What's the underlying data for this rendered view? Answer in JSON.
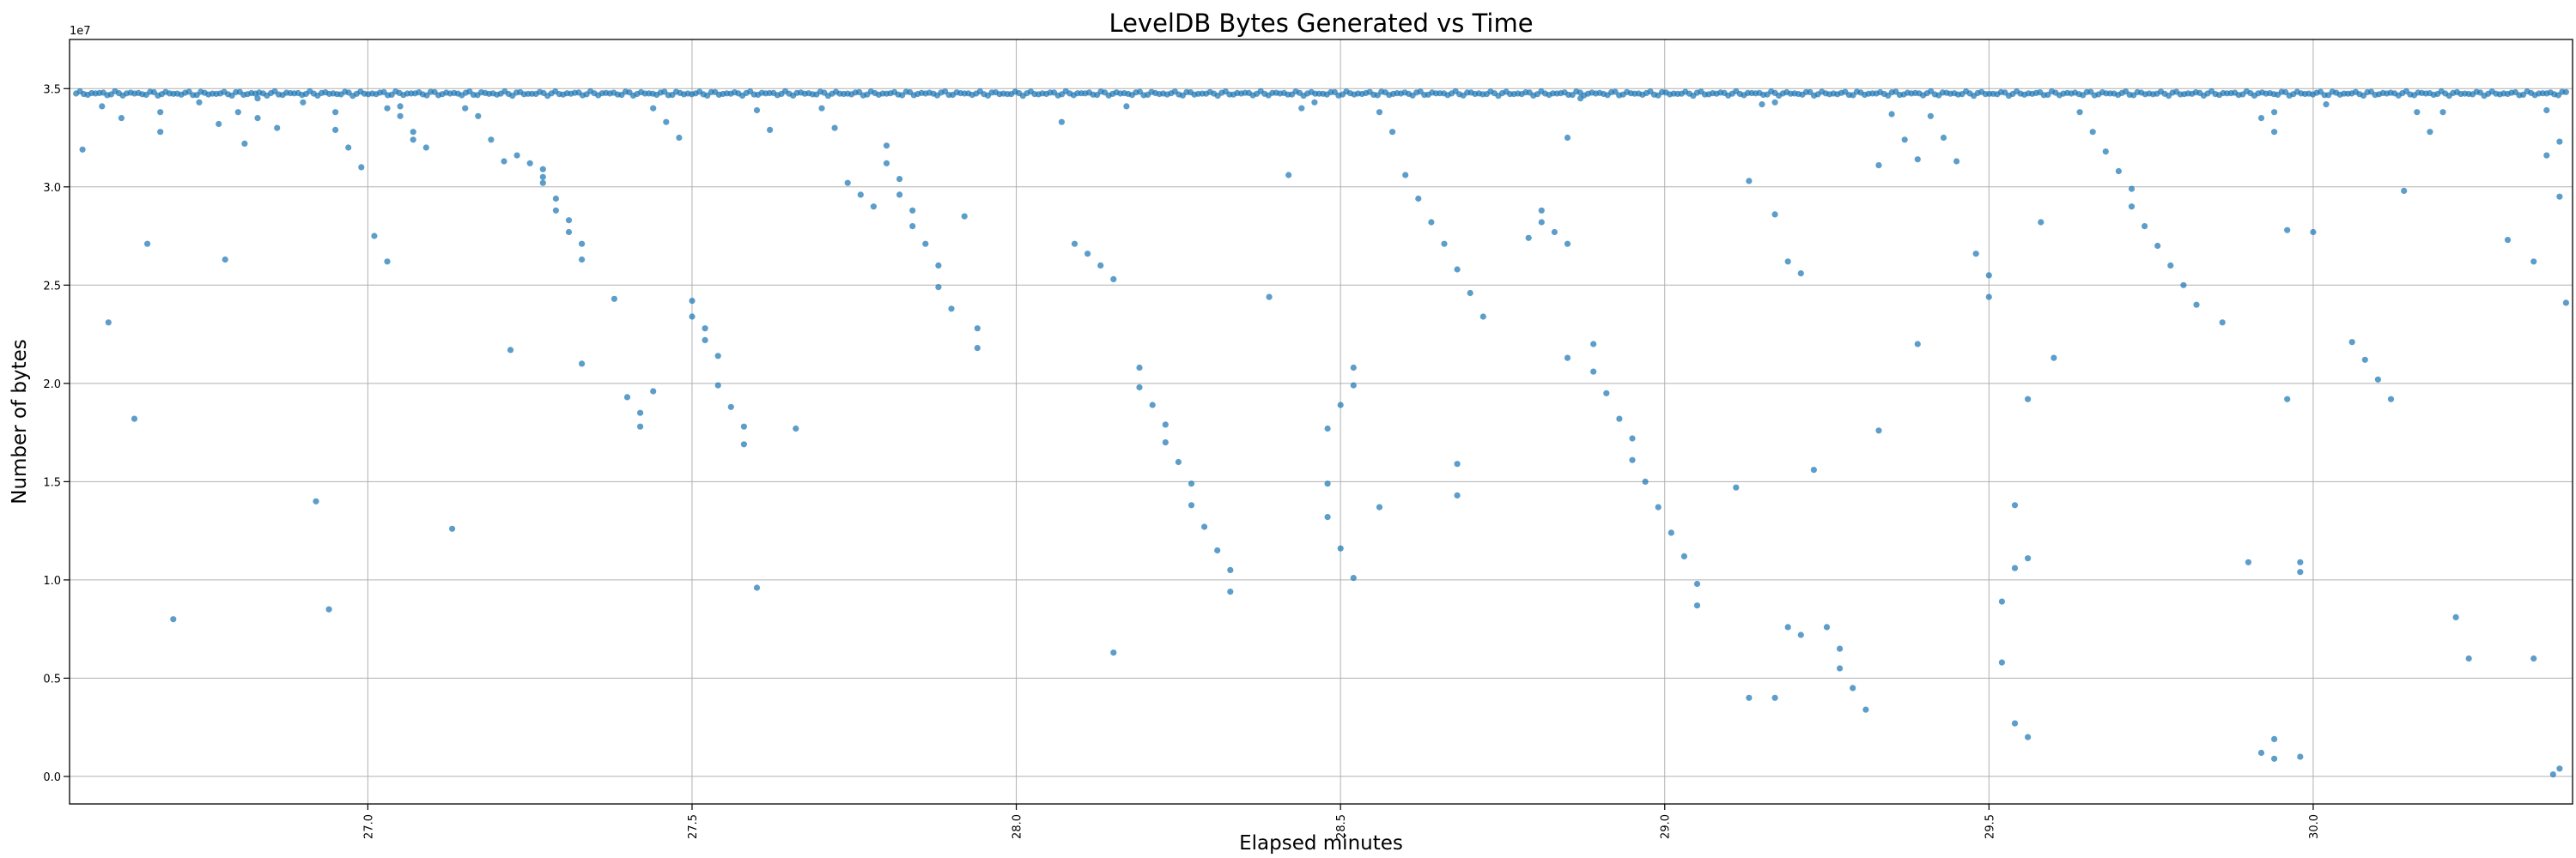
{
  "chart_data": {
    "type": "scatter",
    "title": "LevelDB Bytes Generated vs Time",
    "xlabel": "Elapsed minutes",
    "ylabel": "Number of bytes",
    "y_offset_label": "1e7",
    "xlim": [
      26.54,
      30.4
    ],
    "ylim": [
      -1.4,
      37.5
    ],
    "y_scale_note": "tick labels in units of 1e7 bytes",
    "grid": true,
    "x_ticks": [
      27.0,
      27.5,
      28.0,
      28.5,
      29.0,
      29.5,
      30.0
    ],
    "x_tick_labels": [
      "27.0",
      "27.5",
      "28.0",
      "28.5",
      "29.0",
      "29.5",
      "30.0"
    ],
    "y_ticks": [
      0,
      5,
      10,
      15,
      20,
      25,
      30,
      35
    ],
    "y_tick_labels": [
      "0.0",
      "0.5",
      "1.0",
      "1.5",
      "2.0",
      "2.5",
      "3.0",
      "3.5"
    ],
    "marker_color": "#1f77b4",
    "top_band": {
      "y": 34.75,
      "x_start": 26.55,
      "x_end": 30.39,
      "count": 640,
      "jitter": 0.12
    },
    "series": [
      {
        "points": [
          [
            26.56,
            31.9
          ],
          [
            26.59,
            34.1
          ],
          [
            26.6,
            23.1
          ],
          [
            26.62,
            33.5
          ],
          [
            26.64,
            18.2
          ],
          [
            26.66,
            27.1
          ],
          [
            26.68,
            32.8
          ],
          [
            26.68,
            33.8
          ],
          [
            26.7,
            8.0
          ],
          [
            26.74,
            34.3
          ],
          [
            26.77,
            33.2
          ],
          [
            26.78,
            26.3
          ],
          [
            26.8,
            33.8
          ],
          [
            26.81,
            32.2
          ],
          [
            26.83,
            33.5
          ],
          [
            26.83,
            34.5
          ],
          [
            26.86,
            33.0
          ],
          [
            26.9,
            34.3
          ],
          [
            26.92,
            14.0
          ],
          [
            26.94,
            8.5
          ],
          [
            26.95,
            32.9
          ],
          [
            26.95,
            33.8
          ],
          [
            26.97,
            32.0
          ],
          [
            26.99,
            31.0
          ],
          [
            27.01,
            27.5
          ],
          [
            27.03,
            26.2
          ],
          [
            27.03,
            34.0
          ],
          [
            27.05,
            33.6
          ],
          [
            27.05,
            34.1
          ],
          [
            27.07,
            32.8
          ],
          [
            27.07,
            32.4
          ],
          [
            27.09,
            32.0
          ],
          [
            27.13,
            12.6
          ],
          [
            27.15,
            34.0
          ],
          [
            27.17,
            33.6
          ],
          [
            27.19,
            32.4
          ],
          [
            27.21,
            31.3
          ],
          [
            27.22,
            21.7
          ],
          [
            27.23,
            31.6
          ],
          [
            27.25,
            31.2
          ],
          [
            27.27,
            30.9
          ],
          [
            27.27,
            30.5
          ],
          [
            27.27,
            30.2
          ],
          [
            27.29,
            29.4
          ],
          [
            27.29,
            28.8
          ],
          [
            27.31,
            28.3
          ],
          [
            27.31,
            27.7
          ],
          [
            27.33,
            27.1
          ],
          [
            27.33,
            26.3
          ],
          [
            27.33,
            21.0
          ],
          [
            27.38,
            24.3
          ],
          [
            27.4,
            19.3
          ],
          [
            27.42,
            18.5
          ],
          [
            27.42,
            17.8
          ],
          [
            27.44,
            19.6
          ],
          [
            27.44,
            34.0
          ],
          [
            27.46,
            33.3
          ],
          [
            27.48,
            32.5
          ],
          [
            27.5,
            24.2
          ],
          [
            27.5,
            23.4
          ],
          [
            27.52,
            22.8
          ],
          [
            27.52,
            22.2
          ],
          [
            27.54,
            21.4
          ],
          [
            27.54,
            19.9
          ],
          [
            27.56,
            18.8
          ],
          [
            27.58,
            17.8
          ],
          [
            27.58,
            16.9
          ],
          [
            27.6,
            9.6
          ],
          [
            27.6,
            33.9
          ],
          [
            27.62,
            32.9
          ],
          [
            27.66,
            17.7
          ],
          [
            27.7,
            34.0
          ],
          [
            27.72,
            33.0
          ],
          [
            27.74,
            30.2
          ],
          [
            27.76,
            29.6
          ],
          [
            27.78,
            29.0
          ],
          [
            27.8,
            32.1
          ],
          [
            27.8,
            31.2
          ],
          [
            27.82,
            30.4
          ],
          [
            27.82,
            29.6
          ],
          [
            27.84,
            28.8
          ],
          [
            27.84,
            28.0
          ],
          [
            27.86,
            27.1
          ],
          [
            27.88,
            26.0
          ],
          [
            27.88,
            24.9
          ],
          [
            27.9,
            23.8
          ],
          [
            27.92,
            28.5
          ],
          [
            27.94,
            22.8
          ],
          [
            27.94,
            21.8
          ],
          [
            28.07,
            33.3
          ],
          [
            28.09,
            27.1
          ],
          [
            28.11,
            26.6
          ],
          [
            28.13,
            26.0
          ],
          [
            28.15,
            25.3
          ],
          [
            28.15,
            6.3
          ],
          [
            28.17,
            34.1
          ],
          [
            28.19,
            20.8
          ],
          [
            28.19,
            19.8
          ],
          [
            28.21,
            18.9
          ],
          [
            28.23,
            17.9
          ],
          [
            28.23,
            17.0
          ],
          [
            28.25,
            16.0
          ],
          [
            28.27,
            14.9
          ],
          [
            28.27,
            13.8
          ],
          [
            28.29,
            12.7
          ],
          [
            28.31,
            11.5
          ],
          [
            28.33,
            10.5
          ],
          [
            28.33,
            9.4
          ],
          [
            28.39,
            24.4
          ],
          [
            28.42,
            30.6
          ],
          [
            28.44,
            34.0
          ],
          [
            28.46,
            34.3
          ],
          [
            28.48,
            17.7
          ],
          [
            28.48,
            14.9
          ],
          [
            28.48,
            13.2
          ],
          [
            28.5,
            11.6
          ],
          [
            28.5,
            18.9
          ],
          [
            28.52,
            20.8
          ],
          [
            28.52,
            19.9
          ],
          [
            28.52,
            10.1
          ],
          [
            28.56,
            13.7
          ],
          [
            28.56,
            33.8
          ],
          [
            28.58,
            32.8
          ],
          [
            28.6,
            30.6
          ],
          [
            28.62,
            29.4
          ],
          [
            28.64,
            28.2
          ],
          [
            28.66,
            27.1
          ],
          [
            28.68,
            25.8
          ],
          [
            28.7,
            24.6
          ],
          [
            28.72,
            23.4
          ],
          [
            28.68,
            15.9
          ],
          [
            28.68,
            14.3
          ],
          [
            28.79,
            27.4
          ],
          [
            28.81,
            28.8
          ],
          [
            28.81,
            28.2
          ],
          [
            28.83,
            27.7
          ],
          [
            28.85,
            27.1
          ],
          [
            28.85,
            32.5
          ],
          [
            28.85,
            21.3
          ],
          [
            28.87,
            34.5
          ],
          [
            28.89,
            22.0
          ],
          [
            28.89,
            20.6
          ],
          [
            28.91,
            19.5
          ],
          [
            28.93,
            18.2
          ],
          [
            28.95,
            17.2
          ],
          [
            28.95,
            16.1
          ],
          [
            28.97,
            15.0
          ],
          [
            28.99,
            13.7
          ],
          [
            29.01,
            12.4
          ],
          [
            29.03,
            11.2
          ],
          [
            29.05,
            9.8
          ],
          [
            29.05,
            8.7
          ],
          [
            29.11,
            14.7
          ],
          [
            29.13,
            30.3
          ],
          [
            29.13,
            4.0
          ],
          [
            29.15,
            34.2
          ],
          [
            29.17,
            34.3
          ],
          [
            29.17,
            28.6
          ],
          [
            29.17,
            4.0
          ],
          [
            29.19,
            26.2
          ],
          [
            29.19,
            7.6
          ],
          [
            29.21,
            25.6
          ],
          [
            29.21,
            7.2
          ],
          [
            29.23,
            15.6
          ],
          [
            29.25,
            7.6
          ],
          [
            29.27,
            6.5
          ],
          [
            29.27,
            5.5
          ],
          [
            29.29,
            4.5
          ],
          [
            29.31,
            3.4
          ],
          [
            29.33,
            31.1
          ],
          [
            29.33,
            17.6
          ],
          [
            29.35,
            33.7
          ],
          [
            29.37,
            32.4
          ],
          [
            29.39,
            31.4
          ],
          [
            29.39,
            22.0
          ],
          [
            29.41,
            33.6
          ],
          [
            29.43,
            32.5
          ],
          [
            29.45,
            31.3
          ],
          [
            29.48,
            26.6
          ],
          [
            29.5,
            25.5
          ],
          [
            29.5,
            24.4
          ],
          [
            29.52,
            8.9
          ],
          [
            29.52,
            5.8
          ],
          [
            29.54,
            10.6
          ],
          [
            29.54,
            13.8
          ],
          [
            29.54,
            2.7
          ],
          [
            29.56,
            19.2
          ],
          [
            29.56,
            11.1
          ],
          [
            29.56,
            2.0
          ],
          [
            29.58,
            28.2
          ],
          [
            29.6,
            21.3
          ],
          [
            29.64,
            33.8
          ],
          [
            29.66,
            32.8
          ],
          [
            29.68,
            31.8
          ],
          [
            29.7,
            30.8
          ],
          [
            29.72,
            29.9
          ],
          [
            29.72,
            29.0
          ],
          [
            29.74,
            28.0
          ],
          [
            29.76,
            27.0
          ],
          [
            29.78,
            26.0
          ],
          [
            29.8,
            25.0
          ],
          [
            29.82,
            24.0
          ],
          [
            29.86,
            23.1
          ],
          [
            29.9,
            10.9
          ],
          [
            29.92,
            33.5
          ],
          [
            29.92,
            1.2
          ],
          [
            29.94,
            33.8
          ],
          [
            29.94,
            32.8
          ],
          [
            29.94,
            1.9
          ],
          [
            29.94,
            0.9
          ],
          [
            29.96,
            27.8
          ],
          [
            29.96,
            19.2
          ],
          [
            29.98,
            10.9
          ],
          [
            29.98,
            10.4
          ],
          [
            29.98,
            1.0
          ],
          [
            30.0,
            27.7
          ],
          [
            30.02,
            34.2
          ],
          [
            30.06,
            22.1
          ],
          [
            30.08,
            21.2
          ],
          [
            30.1,
            20.2
          ],
          [
            30.12,
            19.2
          ],
          [
            30.14,
            29.8
          ],
          [
            30.16,
            33.8
          ],
          [
            30.18,
            32.8
          ],
          [
            30.2,
            33.8
          ],
          [
            30.22,
            8.1
          ],
          [
            30.24,
            6.0
          ],
          [
            30.3,
            27.3
          ],
          [
            30.34,
            26.2
          ],
          [
            30.34,
            6.0
          ],
          [
            30.36,
            31.6
          ],
          [
            30.36,
            33.9
          ],
          [
            30.37,
            0.1
          ],
          [
            30.38,
            29.5
          ],
          [
            30.38,
            32.3
          ],
          [
            30.38,
            0.4
          ],
          [
            30.39,
            24.1
          ]
        ]
      }
    ]
  }
}
